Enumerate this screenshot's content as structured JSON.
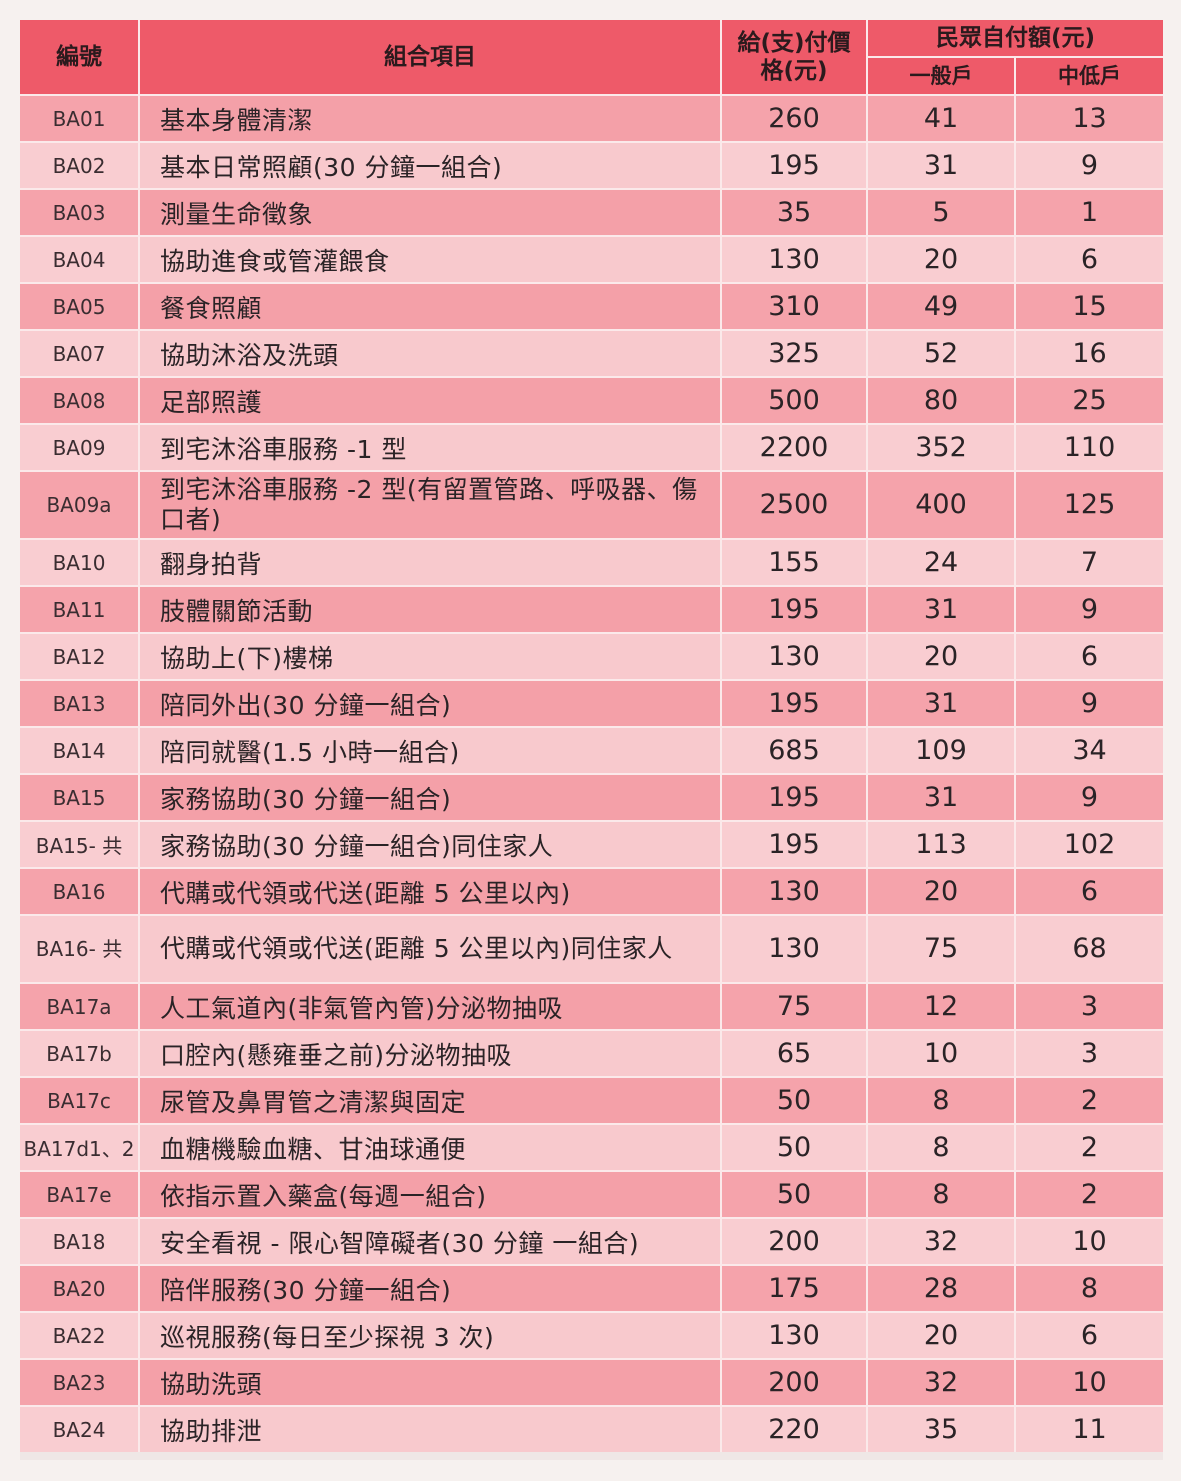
{
  "header": {
    "code": "編號",
    "item": "組合項目",
    "price": "給(支)付價格(元)",
    "copay": "民眾自付額(元)",
    "general": "一般戶",
    "lowmid": "中低戶"
  },
  "rows": [
    {
      "code": "BA01",
      "item": "基本身體清潔",
      "price": "260",
      "general": "41",
      "lowmid": "13"
    },
    {
      "code": "BA02",
      "item": "基本日常照顧(30 分鐘一組合)",
      "price": "195",
      "general": "31",
      "lowmid": "9"
    },
    {
      "code": "BA03",
      "item": "測量生命徵象",
      "price": "35",
      "general": "5",
      "lowmid": "1"
    },
    {
      "code": "BA04",
      "item": "協助進食或管灌餵食",
      "price": "130",
      "general": "20",
      "lowmid": "6"
    },
    {
      "code": "BA05",
      "item": "餐食照顧",
      "price": "310",
      "general": "49",
      "lowmid": "15"
    },
    {
      "code": "BA07",
      "item": "協助沐浴及洗頭",
      "price": "325",
      "general": "52",
      "lowmid": "16"
    },
    {
      "code": "BA08",
      "item": "足部照護",
      "price": "500",
      "general": "80",
      "lowmid": "25"
    },
    {
      "code": "BA09",
      "item": "到宅沐浴車服務 -1 型",
      "price": "2200",
      "general": "352",
      "lowmid": "110"
    },
    {
      "code": "BA09a",
      "item": "到宅沐浴車服務 -2 型(有留置管路、呼吸器、傷口者)",
      "price": "2500",
      "general": "400",
      "lowmid": "125"
    },
    {
      "code": "BA10",
      "item": "翻身拍背",
      "price": "155",
      "general": "24",
      "lowmid": "7"
    },
    {
      "code": "BA11",
      "item": "肢體關節活動",
      "price": "195",
      "general": "31",
      "lowmid": "9"
    },
    {
      "code": "BA12",
      "item": "協助上(下)樓梯",
      "price": "130",
      "general": "20",
      "lowmid": "6"
    },
    {
      "code": "BA13",
      "item": "陪同外出(30 分鐘一組合)",
      "price": "195",
      "general": "31",
      "lowmid": "9"
    },
    {
      "code": "BA14",
      "item": "陪同就醫(1.5 小時一組合)",
      "price": "685",
      "general": "109",
      "lowmid": "34"
    },
    {
      "code": "BA15",
      "item": "家務協助(30 分鐘一組合)",
      "price": "195",
      "general": "31",
      "lowmid": "9"
    },
    {
      "code": "BA15- 共",
      "item": "家務協助(30 分鐘一組合)同住家人",
      "price": "195",
      "general": "113",
      "lowmid": "102"
    },
    {
      "code": "BA16",
      "item": "代購或代領或代送(距離 5 公里以內)",
      "price": "130",
      "general": "20",
      "lowmid": "6"
    },
    {
      "code": "BA16- 共",
      "item": "代購或代領或代送(距離 5 公里以內)同住家人",
      "price": "130",
      "general": "75",
      "lowmid": "68"
    },
    {
      "code": "BA17a",
      "item": "人工氣道內(非氣管內管)分泌物抽吸",
      "price": "75",
      "general": "12",
      "lowmid": "3"
    },
    {
      "code": "BA17b",
      "item": "口腔內(懸雍垂之前)分泌物抽吸",
      "price": "65",
      "general": "10",
      "lowmid": "3"
    },
    {
      "code": "BA17c",
      "item": "尿管及鼻胃管之清潔與固定",
      "price": "50",
      "general": "8",
      "lowmid": "2"
    },
    {
      "code": "BA17d1、2",
      "item": "血糖機驗血糖、甘油球通便",
      "price": "50",
      "general": "8",
      "lowmid": "2"
    },
    {
      "code": "BA17e",
      "item": "依指示置入藥盒(每週一組合)",
      "price": "50",
      "general": "8",
      "lowmid": "2"
    },
    {
      "code": "BA18",
      "item": "安全看視 - 限心智障礙者(30 分鐘 一組合)",
      "price": "200",
      "general": "32",
      "lowmid": "10"
    },
    {
      "code": "BA20",
      "item": "陪伴服務(30 分鐘一組合)",
      "price": "175",
      "general": "28",
      "lowmid": "8"
    },
    {
      "code": "BA22",
      "item": "巡視服務(每日至少探視 3 次)",
      "price": "130",
      "general": "20",
      "lowmid": "6"
    },
    {
      "code": "BA23",
      "item": "協助洗頭",
      "price": "200",
      "general": "32",
      "lowmid": "10"
    },
    {
      "code": "BA24",
      "item": "協助排泄",
      "price": "220",
      "general": "35",
      "lowmid": "11"
    }
  ]
}
